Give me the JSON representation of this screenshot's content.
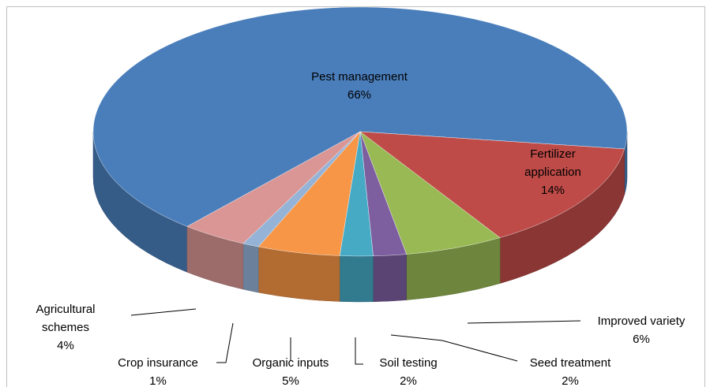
{
  "chart_data": {
    "type": "pie",
    "categories": [
      "Pest management",
      "Fertilizer application",
      "Improved variety",
      "Seed treatment",
      "Soil testing",
      "Organic inputs",
      "Crop insurance",
      "Agricultural schemes"
    ],
    "values": [
      66,
      14,
      6,
      2,
      2,
      5,
      1,
      4
    ],
    "value_labels": [
      "66%",
      "14%",
      "6%",
      "2%",
      "2%",
      "5%",
      "1%",
      "4%"
    ],
    "colors": [
      "#4a7ebb",
      "#be4b48",
      "#98b954",
      "#7d5fa0",
      "#46aac5",
      "#f79646",
      "#95b3d7",
      "#d99694"
    ]
  }
}
